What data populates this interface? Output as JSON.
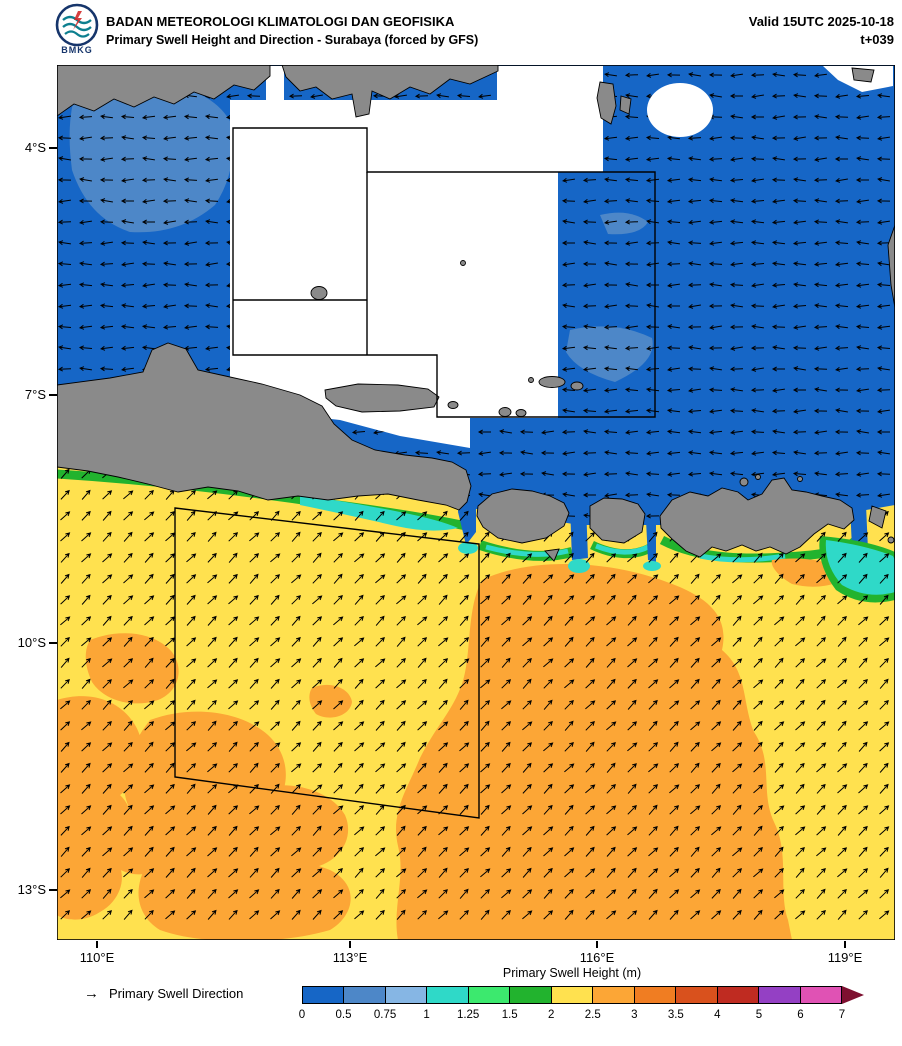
{
  "header": {
    "agency": "BADAN METEOROLOGI KLIMATOLOGI DAN GEOFISIKA",
    "product": "Primary Swell Height and Direction - Surabaya (forced by GFS)",
    "valid_time": "Valid 15UTC 2025-10-18",
    "forecast_step": "t+039",
    "logo_text": "BMKG"
  },
  "map": {
    "lat_tick_labels": [
      "4°S",
      "7°S",
      "10°S",
      "13°S"
    ],
    "lon_tick_labels": [
      "110°E",
      "113°E",
      "116°E",
      "119°E"
    ]
  },
  "legend": {
    "direction_arrow": "→",
    "direction_label": "Primary Swell Direction",
    "colorbar_title": "Primary Swell Height (m)",
    "tick_labels": [
      "0",
      "0.5",
      "0.75",
      "1",
      "1.25",
      "1.5",
      "2",
      "2.5",
      "3",
      "3.5",
      "4",
      "5",
      "6",
      "7"
    ],
    "segment_colors": [
      "#1666c6",
      "#4d87c8",
      "#86b6e4",
      "#2fd9c8",
      "#3ce96e",
      "#22b32e",
      "#ffe14f",
      "#fca636",
      "#f07d22",
      "#d9511d",
      "#bf2b21",
      "#9440c4",
      "#e052b4"
    ],
    "overflow_color": "#7e1030"
  },
  "map_palette": {
    "land": "#8a8a8a",
    "coastline": "#000000",
    "mask": "#ffffff",
    "arrow": "#000000",
    "box_line": "#000000",
    "frame": "#000000"
  }
}
